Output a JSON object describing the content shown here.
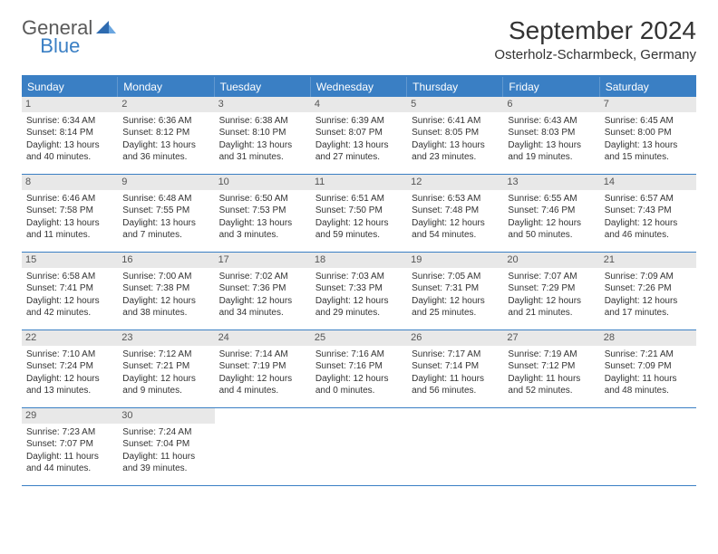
{
  "logo": {
    "part1": "General",
    "part2": "Blue"
  },
  "title": "September 2024",
  "location": "Osterholz-Scharmbeck, Germany",
  "colors": {
    "accent": "#3a7fc4",
    "header_bg": "#3a7fc4",
    "daynum_bg": "#e8e8e8",
    "text": "#333333",
    "logo_gray": "#5a5a5a"
  },
  "weekdays": [
    "Sunday",
    "Monday",
    "Tuesday",
    "Wednesday",
    "Thursday",
    "Friday",
    "Saturday"
  ],
  "weeks": [
    [
      {
        "num": "1",
        "sunrise": "Sunrise: 6:34 AM",
        "sunset": "Sunset: 8:14 PM",
        "daylight": "Daylight: 13 hours and 40 minutes."
      },
      {
        "num": "2",
        "sunrise": "Sunrise: 6:36 AM",
        "sunset": "Sunset: 8:12 PM",
        "daylight": "Daylight: 13 hours and 36 minutes."
      },
      {
        "num": "3",
        "sunrise": "Sunrise: 6:38 AM",
        "sunset": "Sunset: 8:10 PM",
        "daylight": "Daylight: 13 hours and 31 minutes."
      },
      {
        "num": "4",
        "sunrise": "Sunrise: 6:39 AM",
        "sunset": "Sunset: 8:07 PM",
        "daylight": "Daylight: 13 hours and 27 minutes."
      },
      {
        "num": "5",
        "sunrise": "Sunrise: 6:41 AM",
        "sunset": "Sunset: 8:05 PM",
        "daylight": "Daylight: 13 hours and 23 minutes."
      },
      {
        "num": "6",
        "sunrise": "Sunrise: 6:43 AM",
        "sunset": "Sunset: 8:03 PM",
        "daylight": "Daylight: 13 hours and 19 minutes."
      },
      {
        "num": "7",
        "sunrise": "Sunrise: 6:45 AM",
        "sunset": "Sunset: 8:00 PM",
        "daylight": "Daylight: 13 hours and 15 minutes."
      }
    ],
    [
      {
        "num": "8",
        "sunrise": "Sunrise: 6:46 AM",
        "sunset": "Sunset: 7:58 PM",
        "daylight": "Daylight: 13 hours and 11 minutes."
      },
      {
        "num": "9",
        "sunrise": "Sunrise: 6:48 AM",
        "sunset": "Sunset: 7:55 PM",
        "daylight": "Daylight: 13 hours and 7 minutes."
      },
      {
        "num": "10",
        "sunrise": "Sunrise: 6:50 AM",
        "sunset": "Sunset: 7:53 PM",
        "daylight": "Daylight: 13 hours and 3 minutes."
      },
      {
        "num": "11",
        "sunrise": "Sunrise: 6:51 AM",
        "sunset": "Sunset: 7:50 PM",
        "daylight": "Daylight: 12 hours and 59 minutes."
      },
      {
        "num": "12",
        "sunrise": "Sunrise: 6:53 AM",
        "sunset": "Sunset: 7:48 PM",
        "daylight": "Daylight: 12 hours and 54 minutes."
      },
      {
        "num": "13",
        "sunrise": "Sunrise: 6:55 AM",
        "sunset": "Sunset: 7:46 PM",
        "daylight": "Daylight: 12 hours and 50 minutes."
      },
      {
        "num": "14",
        "sunrise": "Sunrise: 6:57 AM",
        "sunset": "Sunset: 7:43 PM",
        "daylight": "Daylight: 12 hours and 46 minutes."
      }
    ],
    [
      {
        "num": "15",
        "sunrise": "Sunrise: 6:58 AM",
        "sunset": "Sunset: 7:41 PM",
        "daylight": "Daylight: 12 hours and 42 minutes."
      },
      {
        "num": "16",
        "sunrise": "Sunrise: 7:00 AM",
        "sunset": "Sunset: 7:38 PM",
        "daylight": "Daylight: 12 hours and 38 minutes."
      },
      {
        "num": "17",
        "sunrise": "Sunrise: 7:02 AM",
        "sunset": "Sunset: 7:36 PM",
        "daylight": "Daylight: 12 hours and 34 minutes."
      },
      {
        "num": "18",
        "sunrise": "Sunrise: 7:03 AM",
        "sunset": "Sunset: 7:33 PM",
        "daylight": "Daylight: 12 hours and 29 minutes."
      },
      {
        "num": "19",
        "sunrise": "Sunrise: 7:05 AM",
        "sunset": "Sunset: 7:31 PM",
        "daylight": "Daylight: 12 hours and 25 minutes."
      },
      {
        "num": "20",
        "sunrise": "Sunrise: 7:07 AM",
        "sunset": "Sunset: 7:29 PM",
        "daylight": "Daylight: 12 hours and 21 minutes."
      },
      {
        "num": "21",
        "sunrise": "Sunrise: 7:09 AM",
        "sunset": "Sunset: 7:26 PM",
        "daylight": "Daylight: 12 hours and 17 minutes."
      }
    ],
    [
      {
        "num": "22",
        "sunrise": "Sunrise: 7:10 AM",
        "sunset": "Sunset: 7:24 PM",
        "daylight": "Daylight: 12 hours and 13 minutes."
      },
      {
        "num": "23",
        "sunrise": "Sunrise: 7:12 AM",
        "sunset": "Sunset: 7:21 PM",
        "daylight": "Daylight: 12 hours and 9 minutes."
      },
      {
        "num": "24",
        "sunrise": "Sunrise: 7:14 AM",
        "sunset": "Sunset: 7:19 PM",
        "daylight": "Daylight: 12 hours and 4 minutes."
      },
      {
        "num": "25",
        "sunrise": "Sunrise: 7:16 AM",
        "sunset": "Sunset: 7:16 PM",
        "daylight": "Daylight: 12 hours and 0 minutes."
      },
      {
        "num": "26",
        "sunrise": "Sunrise: 7:17 AM",
        "sunset": "Sunset: 7:14 PM",
        "daylight": "Daylight: 11 hours and 56 minutes."
      },
      {
        "num": "27",
        "sunrise": "Sunrise: 7:19 AM",
        "sunset": "Sunset: 7:12 PM",
        "daylight": "Daylight: 11 hours and 52 minutes."
      },
      {
        "num": "28",
        "sunrise": "Sunrise: 7:21 AM",
        "sunset": "Sunset: 7:09 PM",
        "daylight": "Daylight: 11 hours and 48 minutes."
      }
    ],
    [
      {
        "num": "29",
        "sunrise": "Sunrise: 7:23 AM",
        "sunset": "Sunset: 7:07 PM",
        "daylight": "Daylight: 11 hours and 44 minutes."
      },
      {
        "num": "30",
        "sunrise": "Sunrise: 7:24 AM",
        "sunset": "Sunset: 7:04 PM",
        "daylight": "Daylight: 11 hours and 39 minutes."
      },
      null,
      null,
      null,
      null,
      null
    ]
  ]
}
